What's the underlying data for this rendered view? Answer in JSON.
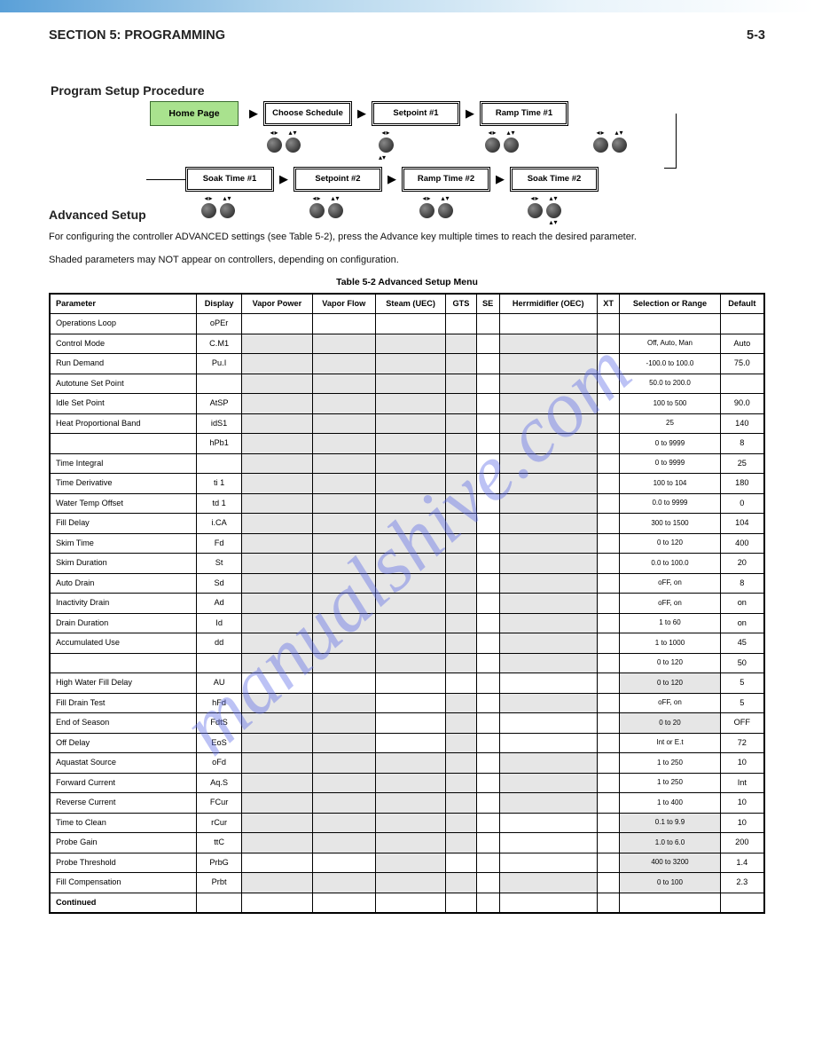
{
  "page": {
    "section": "SECTION 5: PROGRAMMING",
    "number": "5-3"
  },
  "subhead": "Program Setup Procedure",
  "flowchart": {
    "home": "Home Page",
    "row1": [
      "Choose\nSchedule",
      "Setpoint\n#1",
      "Ramp\nTime #1"
    ],
    "row2": [
      "Soak\nTime #1",
      "Setpoint\n#2",
      "Ramp\nTime #2",
      "Soak\nTime #2"
    ],
    "below_r1": [
      {
        "lr": true,
        "ud": true,
        "arrow": false
      },
      {
        "lr": true,
        "ud": false,
        "arrow": true
      },
      {
        "lr": true,
        "ud": true,
        "arrow": false
      },
      {
        "lr": true,
        "ud": true,
        "arrow": false
      }
    ],
    "below_r2": [
      {
        "lr": true,
        "ud": true,
        "arrow": false
      },
      {
        "lr": true,
        "ud": true,
        "arrow": false
      },
      {
        "lr": true,
        "ud": true,
        "arrow": false
      },
      {
        "lr": true,
        "ud": true,
        "arrow": true
      }
    ]
  },
  "advanced": {
    "head": "Advanced Setup",
    "line1": "For configuring the controller ADVANCED settings (see Table 5-2), press the Advance key multiple times to reach the desired parameter.",
    "line2": "Shaded parameters may NOT appear on controllers, depending on configuration."
  },
  "table": {
    "title": "Table 5-2 Advanced Setup Menu",
    "columns": [
      "Parameter",
      "Display",
      "Vapor Power",
      "Vapor Flow",
      "Steam (UEC)",
      "GTS",
      "SE",
      "Herrmidifler (OEC)",
      "XT",
      "Selection or Range",
      "Default"
    ],
    "sub_header": [
      "Operations Loop",
      "oPEr",
      "",
      "",
      "",
      "",
      "",
      "",
      "",
      "",
      ""
    ],
    "rows": [
      [
        "Control Mode",
        "C.M1",
        "",
        "",
        "",
        "",
        "",
        "",
        "",
        "Off, Auto, Man",
        "Auto"
      ],
      [
        "Run Demand",
        "Pu.I",
        "",
        "",
        "",
        "",
        "",
        "",
        "",
        "-100.0 to 100.0",
        "75.0"
      ],
      [
        "Autotune Set Point",
        "",
        "",
        "",
        "",
        "",
        "",
        "",
        "",
        "50.0 to 200.0",
        ""
      ],
      [
        "Idle Set Point",
        "AtSP",
        "",
        "",
        "",
        "",
        "",
        "",
        "",
        "100 to 500",
        "90.0"
      ],
      [
        "Heat Proportional Band",
        "idS1",
        "",
        "",
        "",
        "",
        "",
        "",
        "",
        "25",
        "140"
      ],
      [
        "",
        "hPb1",
        "",
        "",
        "",
        "",
        "",
        "",
        "",
        "0 to 9999",
        "8"
      ],
      [
        "Time Integral",
        "",
        "",
        "",
        "",
        "",
        "",
        "",
        "",
        "0 to 9999",
        "25"
      ],
      [
        "Time Derivative",
        "ti 1",
        "",
        "",
        "",
        "",
        "",
        "",
        "",
        "100 to 104",
        "180"
      ],
      [
        "Water Temp Offset",
        "td 1",
        "",
        "",
        "",
        "",
        "",
        "",
        "",
        "0.0 to 9999",
        "0"
      ],
      [
        "Fill Delay",
        "i.CA",
        "",
        "",
        "",
        "",
        "",
        "",
        "",
        "300 to 1500",
        "104"
      ],
      [
        "Skim Time",
        "Fd",
        "",
        "",
        "",
        "",
        "",
        "",
        "",
        "0 to 120",
        "400"
      ],
      [
        "Skim Duration",
        "St",
        "",
        "",
        "",
        "",
        "",
        "",
        "",
        "0.0 to 100.0",
        "20"
      ],
      [
        "Auto Drain",
        "Sd",
        "",
        "",
        "",
        "",
        "",
        "",
        "",
        "oFF, on",
        "8"
      ],
      [
        "Inactivity Drain",
        "Ad",
        "",
        "",
        "",
        "",
        "",
        "",
        "",
        "oFF, on",
        "on"
      ],
      [
        "Drain Duration",
        "Id",
        "",
        "",
        "",
        "",
        "",
        "",
        "",
        "1 to 60",
        "on"
      ],
      [
        "Accumulated Use",
        "dd",
        "",
        "",
        "",
        "",
        "",
        "",
        "",
        "1 to 1000",
        "45"
      ],
      [
        "",
        "",
        "",
        "",
        "",
        "",
        "",
        "",
        "",
        "0 to 120",
        "50"
      ],
      [
        "High Water Fill Delay",
        "AU",
        "",
        "",
        "",
        "",
        "",
        "",
        "",
        "0 to 120",
        "5"
      ],
      [
        "Fill Drain Test",
        "hFd",
        "",
        "",
        "",
        "",
        "",
        "",
        "",
        "oFF, on",
        "5"
      ],
      [
        "End of Season",
        "FdtS",
        "",
        "",
        "",
        "",
        "",
        "",
        "",
        "0 to 20",
        "OFF"
      ],
      [
        "Off Delay",
        "EoS",
        "",
        "",
        "",
        "",
        "",
        "",
        "",
        "Int or E.t",
        "72"
      ],
      [
        "Aquastat Source",
        "oFd",
        "",
        "",
        "",
        "",
        "",
        "",
        "",
        "1 to 250",
        "10"
      ],
      [
        "Forward Current",
        "Aq.S",
        "",
        "",
        "",
        "",
        "",
        "",
        "",
        "1 to 250",
        "Int"
      ],
      [
        "Reverse Current",
        "FCur",
        "",
        "",
        "",
        "",
        "",
        "",
        "",
        "1 to 400",
        "10"
      ],
      [
        "Time to Clean",
        "rCur",
        "",
        "",
        "",
        "",
        "",
        "",
        "",
        "0.1 to 9.9",
        "10"
      ],
      [
        "Probe Gain",
        "ttC",
        "",
        "",
        "",
        "",
        "",
        "",
        "",
        "1.0 to 6.0",
        "200"
      ],
      [
        "Probe Threshold",
        "PrbG",
        "",
        "",
        "",
        "",
        "",
        "",
        "",
        "400 to 3200",
        "1.4"
      ],
      [
        "Fill Compensation",
        "Prbt",
        "",
        "",
        "",
        "",
        "",
        "",
        "",
        "0 to 100",
        "2.3"
      ]
    ],
    "shaded_cols_default": [
      2,
      3,
      4,
      5,
      7
    ],
    "unshaded_exceptions": {
      "17": [
        2,
        3,
        4,
        5,
        7
      ],
      "18": [
        4
      ],
      "19": [
        4,
        7
      ],
      "20": [
        4,
        7
      ],
      "24": [
        7
      ],
      "25": [
        7
      ],
      "26": [
        2,
        3,
        5,
        7
      ]
    },
    "shade_col9_rows": [
      17,
      19,
      24,
      25,
      26,
      27
    ],
    "extra": "Continued"
  },
  "watermark": "manualshive.com"
}
